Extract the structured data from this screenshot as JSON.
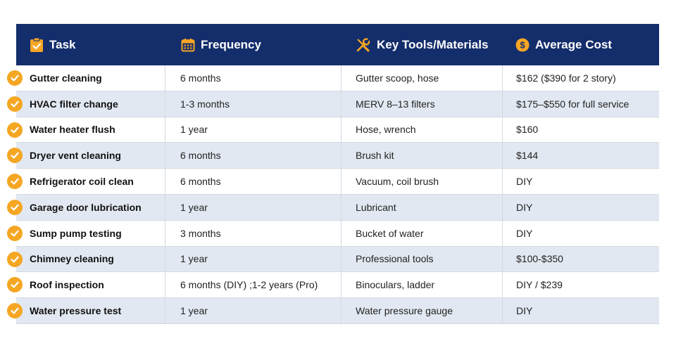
{
  "headers": {
    "task": "Task",
    "frequency": "Frequency",
    "tools": "Key Tools/Materials",
    "cost": "Average Cost"
  },
  "icons": {
    "task": "clipboard-check-icon",
    "frequency": "calendar-icon",
    "tools": "wrench-screwdriver-icon",
    "cost": "dollar-coin-icon",
    "row": "checkmark-circle-icon"
  },
  "colors": {
    "header_bg": "#142d6b",
    "accent": "#f5a623",
    "row_alt": "#e2e8f1"
  },
  "rows": [
    {
      "task": "Gutter cleaning",
      "frequency": "6 months",
      "tools": "Gutter scoop, hose",
      "cost": "$162 ($390 for 2 story)"
    },
    {
      "task": "HVAC filter change",
      "frequency": "1-3 months",
      "tools": "MERV 8–13 filters",
      "cost": "$175–$550 for full service"
    },
    {
      "task": "Water heater flush",
      "frequency": "1 year",
      "tools": "Hose, wrench",
      "cost": "$160"
    },
    {
      "task": "Dryer vent cleaning",
      "frequency": "6 months",
      "tools": "Brush kit",
      "cost": "$144"
    },
    {
      "task": "Refrigerator coil clean",
      "frequency": "6 months",
      "tools": "Vacuum, coil brush",
      "cost": "DIY"
    },
    {
      "task": "Garage door lubrication",
      "frequency": "1 year",
      "tools": "Lubricant",
      "cost": "DIY"
    },
    {
      "task": "Sump pump testing",
      "frequency": "3 months",
      "tools": "Bucket of water",
      "cost": "DIY"
    },
    {
      "task": "Chimney cleaning",
      "frequency": "1 year",
      "tools": "Professional tools",
      "cost": "$100-$350"
    },
    {
      "task": "Roof inspection",
      "frequency": "6 months (DIY) ;1-2 years (Pro)",
      "tools": "Binoculars, ladder",
      "cost": "DIY / $239"
    },
    {
      "task": "Water pressure test",
      "frequency": "1 year",
      "tools": "Water pressure gauge",
      "cost": "DIY"
    }
  ]
}
